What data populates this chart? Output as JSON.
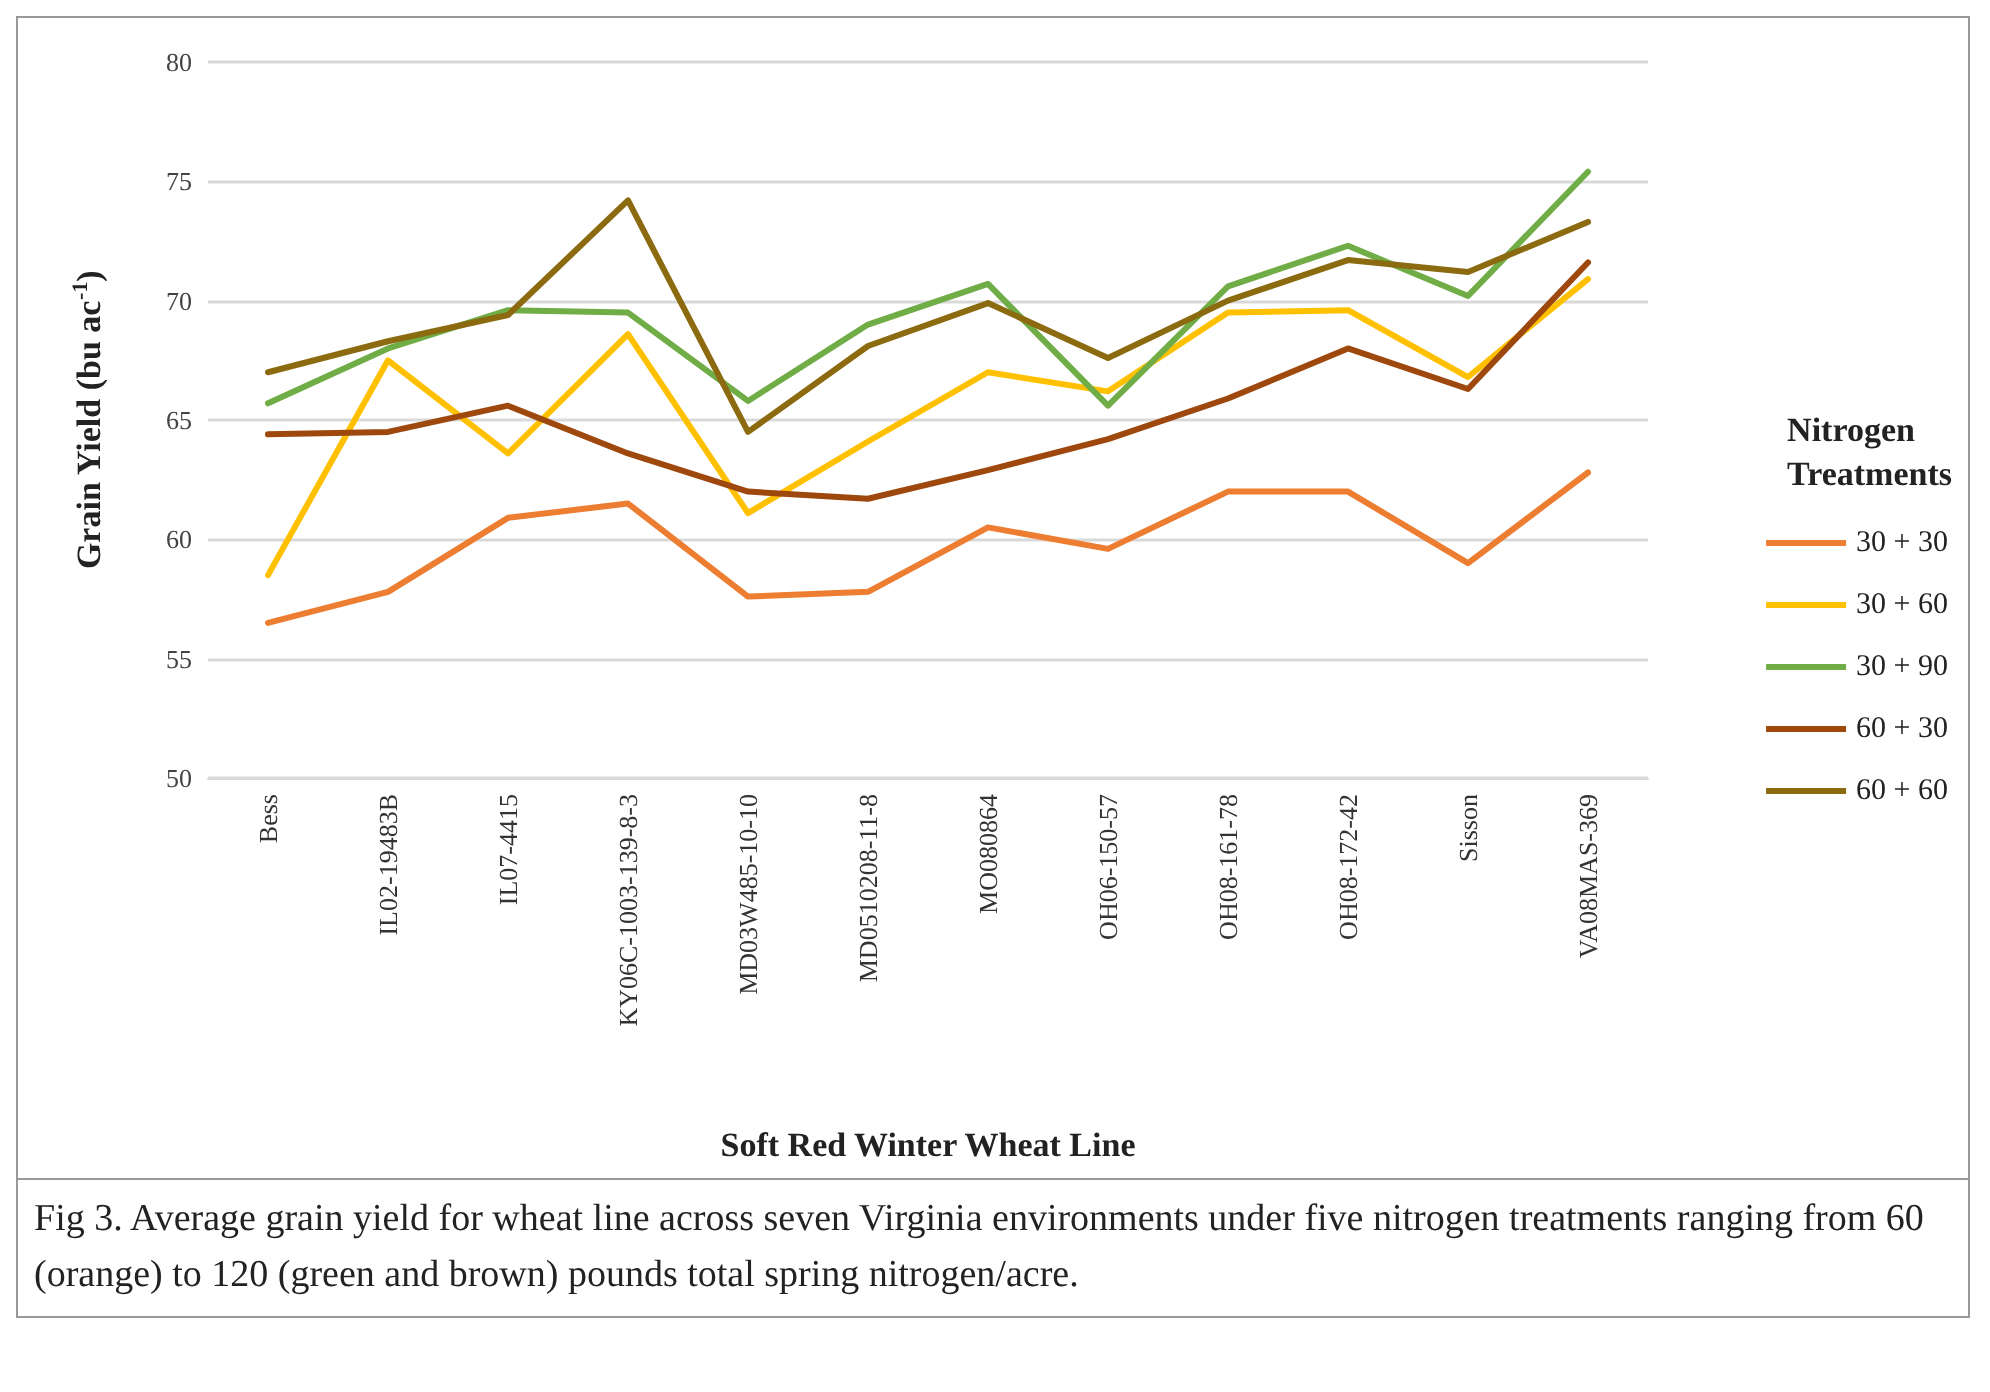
{
  "chart_data": {
    "type": "line",
    "ylabel": "Grain Yield (bu ac$^{-1}$)",
    "xlabel": "Soft Red Winter Wheat Line",
    "legend_title": "Nitrogen Treatments",
    "legend": "right",
    "categories": [
      "Bess",
      "IL02-19483B",
      "IL07-4415",
      "KY06C-1003-139-8-3",
      "MD03W485-10-10",
      "MD0510208-11-8",
      "MO080864",
      "OH06-150-57",
      "OH08-161-78",
      "OH08-172-42",
      "Sisson",
      "VA08MAS-369"
    ],
    "ylim": [
      50,
      80
    ],
    "yticks": [
      50,
      55,
      60,
      65,
      70,
      75,
      80
    ],
    "grid": "y",
    "marker": "none",
    "line_style": "solid",
    "series": [
      {
        "name": "30 + 30",
        "color": "#ed7d31",
        "values": [
          56.5,
          57.8,
          60.9,
          61.5,
          57.6,
          57.8,
          60.5,
          59.6,
          62.0,
          62.0,
          59.0,
          62.8
        ]
      },
      {
        "name": "30 + 60",
        "color": "#ffc000",
        "values": [
          58.5,
          67.5,
          63.6,
          68.6,
          61.1,
          64.1,
          67.0,
          66.2,
          69.5,
          69.6,
          66.8,
          70.9
        ]
      },
      {
        "name": "30 + 90",
        "color": "#70ad47",
        "values": [
          65.7,
          68.0,
          69.6,
          69.5,
          65.8,
          69.0,
          70.7,
          65.6,
          70.6,
          72.3,
          70.2,
          75.4
        ]
      },
      {
        "name": "60 + 30",
        "color": "#9e480e",
        "values": [
          64.4,
          64.5,
          65.6,
          63.6,
          62.0,
          61.7,
          62.9,
          64.2,
          65.9,
          68.0,
          66.3,
          71.6
        ]
      },
      {
        "name": "60 + 60",
        "color": "#8b6a10",
        "values": [
          67.0,
          68.3,
          69.4,
          74.2,
          64.5,
          68.1,
          69.9,
          67.6,
          70.0,
          71.7,
          71.2,
          73.3
        ]
      }
    ],
    "annotations": [
      "Fig 3. Average grain yield for wheat line across seven Virginia environments under five nitrogen treatments ranging from 60 (orange) to 120 (green and brown) pounds total spring nitrogen/acre."
    ]
  }
}
